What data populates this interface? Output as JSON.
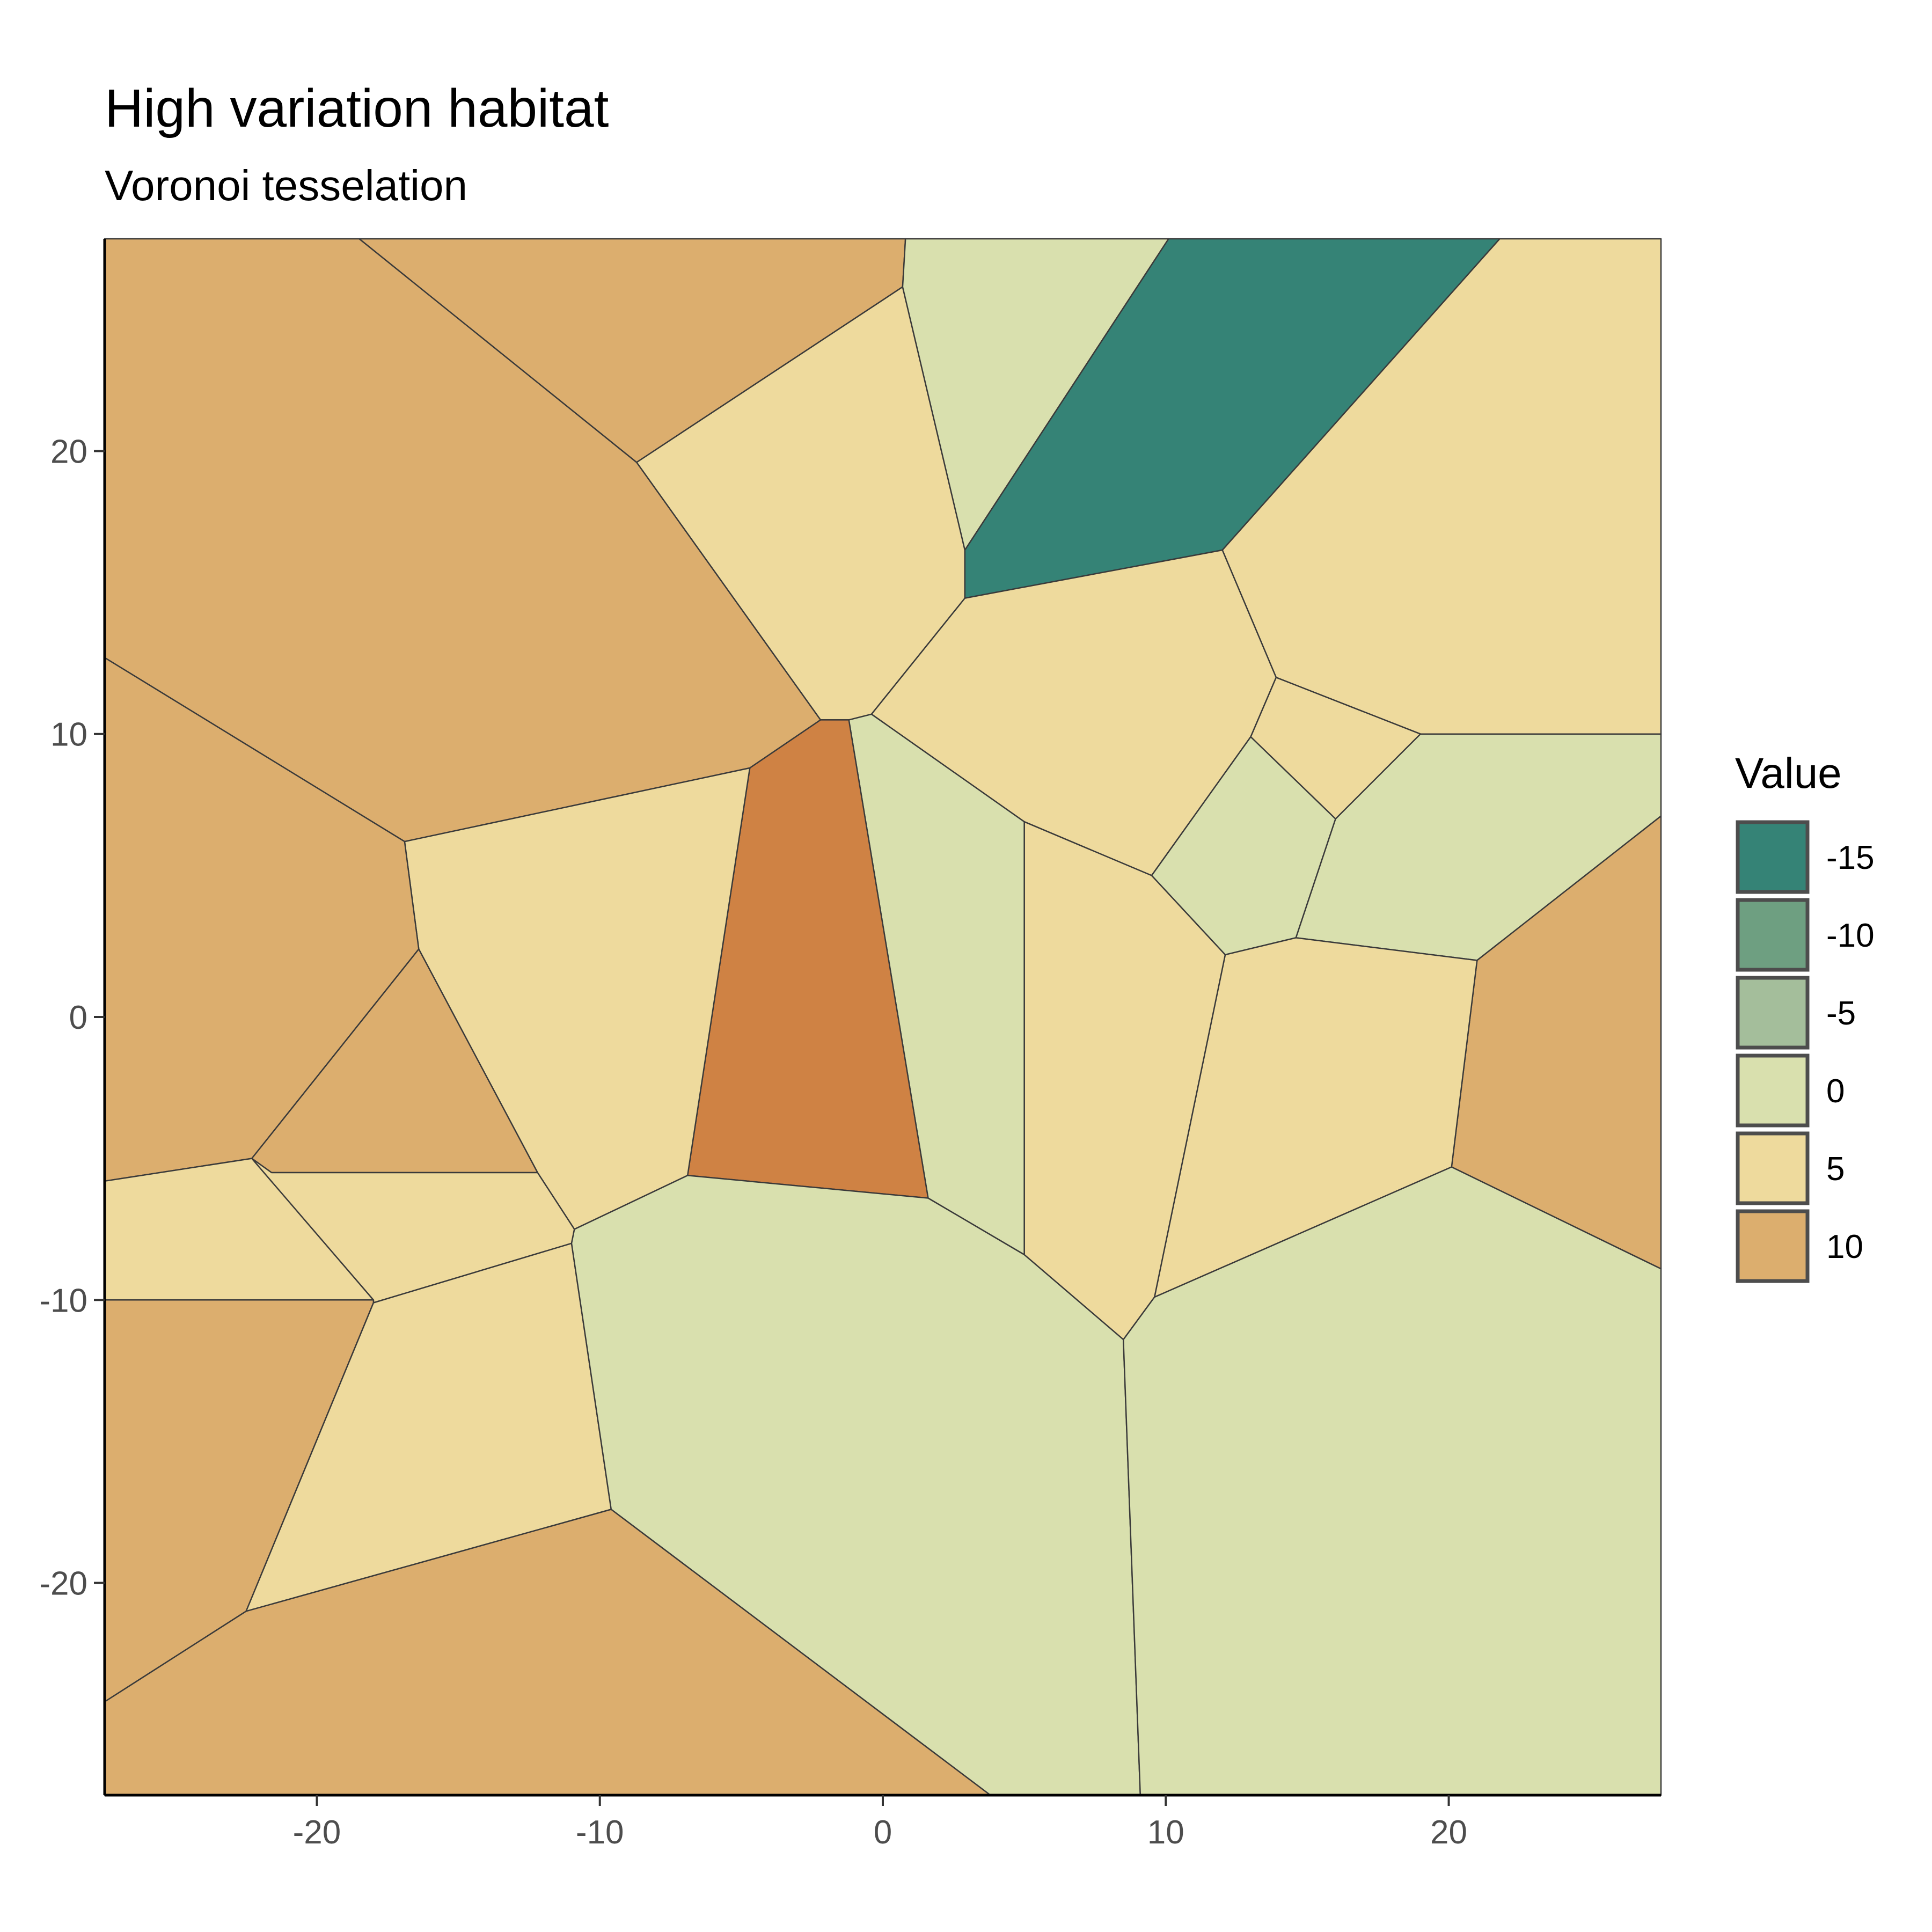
{
  "chart_data": {
    "type": "voronoi",
    "title": "High variation habitat",
    "subtitle": "Voronoi tesselation",
    "xlim": [
      -27.5,
      27.5
    ],
    "ylim": [
      -27.5,
      27.5
    ],
    "x_ticks": [
      -20,
      -10,
      0,
      10,
      20
    ],
    "y_ticks": [
      -20,
      -10,
      0,
      10,
      20
    ],
    "legend": {
      "title": "Value",
      "position": "right",
      "entries": [
        {
          "label": "-15",
          "value": -15,
          "color": "#358376"
        },
        {
          "label": "-10",
          "value": -10,
          "color": "#6E9F81"
        },
        {
          "label": "-5",
          "value": -5,
          "color": "#A4BE9B"
        },
        {
          "label": "0",
          "value": 0,
          "color": "#D9E0AE"
        },
        {
          "label": "5",
          "value": 5,
          "color": "#EEDA9D"
        },
        {
          "label": "10",
          "value": 10,
          "color": "#DCAE6E"
        }
      ]
    },
    "extra_fill_colors": {
      "12": "#CF8244"
    },
    "cells": [
      {
        "value": 10,
        "polygon": [
          [
            -27.5,
            27.5
          ],
          [
            -18.5,
            27.5
          ],
          [
            -8.7,
            19.6
          ],
          [
            -2.2,
            10.5
          ],
          [
            -4.7,
            8.8
          ],
          [
            -16.9,
            6.2
          ],
          [
            -27.5,
            12.7
          ]
        ]
      },
      {
        "value": 10,
        "polygon": [
          [
            -18.5,
            27.5
          ],
          [
            0.8,
            27.5
          ],
          [
            0.7,
            25.8
          ],
          [
            -8.7,
            19.6
          ]
        ]
      },
      {
        "value": 5,
        "polygon": [
          [
            0.7,
            25.8
          ],
          [
            -8.7,
            19.6
          ],
          [
            -2.2,
            10.5
          ],
          [
            -1.2,
            10.5
          ],
          [
            -0.4,
            10.7
          ],
          [
            2.9,
            14.8
          ],
          [
            2.9,
            16.5
          ]
        ]
      },
      {
        "value": 0,
        "polygon": [
          [
            0.8,
            27.5
          ],
          [
            10.1,
            27.5
          ],
          [
            2.9,
            16.5
          ],
          [
            0.7,
            25.8
          ]
        ]
      },
      {
        "value": -15,
        "polygon": [
          [
            10.1,
            27.5
          ],
          [
            21.8,
            27.5
          ],
          [
            12.0,
            16.5
          ],
          [
            2.9,
            14.8
          ],
          [
            2.9,
            16.5
          ]
        ]
      },
      {
        "value": 5,
        "polygon": [
          [
            21.8,
            27.5
          ],
          [
            27.5,
            27.5
          ],
          [
            27.5,
            10.0
          ],
          [
            19.0,
            10.0
          ],
          [
            13.9,
            12.0
          ],
          [
            12.0,
            16.5
          ]
        ]
      },
      {
        "value": 5,
        "polygon": [
          [
            2.9,
            14.8
          ],
          [
            12.0,
            16.5
          ],
          [
            13.9,
            12.0
          ],
          [
            13.0,
            9.9
          ],
          [
            9.5,
            5.0
          ],
          [
            5.0,
            6.9
          ],
          [
            -0.4,
            10.7
          ]
        ]
      },
      {
        "value": 5,
        "polygon": [
          [
            13.9,
            12.0
          ],
          [
            19.0,
            10.0
          ],
          [
            16.0,
            7.0
          ],
          [
            13.0,
            9.9
          ]
        ]
      },
      {
        "value": 0,
        "polygon": [
          [
            13.0,
            9.9
          ],
          [
            16.0,
            7.0
          ],
          [
            14.6,
            2.8
          ],
          [
            12.1,
            2.2
          ],
          [
            9.5,
            5.0
          ]
        ]
      },
      {
        "value": 0,
        "polygon": [
          [
            19.0,
            10.0
          ],
          [
            27.5,
            10.0
          ],
          [
            27.5,
            7.1
          ],
          [
            21.0,
            2.0
          ],
          [
            14.6,
            2.8
          ],
          [
            16.0,
            7.0
          ]
        ]
      },
      {
        "value": 10,
        "polygon": [
          [
            27.5,
            7.1
          ],
          [
            27.5,
            -8.9
          ],
          [
            20.1,
            -5.3
          ],
          [
            21.0,
            2.0
          ]
        ]
      },
      {
        "value": 5,
        "polygon": [
          [
            14.6,
            2.8
          ],
          [
            21.0,
            2.0
          ],
          [
            20.1,
            -5.3
          ],
          [
            9.6,
            -9.9
          ],
          [
            12.1,
            2.2
          ]
        ]
      },
      {
        "value": 5,
        "polygon": [
          [
            5.0,
            6.9
          ],
          [
            9.5,
            5.0
          ],
          [
            12.1,
            2.2
          ],
          [
            9.6,
            -9.9
          ],
          [
            8.5,
            -11.4
          ],
          [
            5.0,
            -8.4
          ]
        ]
      },
      {
        "value": 0,
        "polygon": [
          [
            -1.2,
            10.5
          ],
          [
            -0.4,
            10.7
          ],
          [
            5.0,
            6.9
          ],
          [
            5.0,
            -8.4
          ],
          [
            1.6,
            -6.4
          ]
        ]
      },
      {
        "value": 12,
        "polygon": [
          [
            -2.2,
            10.5
          ],
          [
            -1.2,
            10.5
          ],
          [
            1.6,
            -6.4
          ],
          [
            -6.9,
            -5.6
          ],
          [
            -4.7,
            8.8
          ]
        ]
      },
      {
        "value": 5,
        "polygon": [
          [
            -16.9,
            6.2
          ],
          [
            -4.7,
            8.8
          ],
          [
            -6.9,
            -5.6
          ],
          [
            -10.9,
            -7.5
          ],
          [
            -12.2,
            -5.5
          ],
          [
            -16.4,
            2.4
          ]
        ]
      },
      {
        "value": 10,
        "polygon": [
          [
            -27.5,
            12.7
          ],
          [
            -16.9,
            6.2
          ],
          [
            -16.4,
            2.4
          ],
          [
            -22.3,
            -5.0
          ],
          [
            -27.5,
            -5.8
          ]
        ]
      },
      {
        "value": 10,
        "polygon": [
          [
            -16.4,
            2.4
          ],
          [
            -12.2,
            -5.5
          ],
          [
            -21.6,
            -5.5
          ],
          [
            -22.3,
            -5.0
          ]
        ]
      },
      {
        "value": 5,
        "polygon": [
          [
            -27.5,
            -5.8
          ],
          [
            -22.3,
            -5.0
          ],
          [
            -18.0,
            -10.0
          ],
          [
            -27.5,
            -10.0
          ]
        ]
      },
      {
        "value": 5,
        "polygon": [
          [
            -22.3,
            -5.0
          ],
          [
            -21.6,
            -5.5
          ],
          [
            -12.2,
            -5.5
          ],
          [
            -10.9,
            -7.5
          ],
          [
            -11.0,
            -8.0
          ],
          [
            -18.0,
            -10.1
          ],
          [
            -18.0,
            -10.0
          ]
        ]
      },
      {
        "value": 10,
        "polygon": [
          [
            -27.5,
            -10.0
          ],
          [
            -18.0,
            -10.0
          ],
          [
            -18.0,
            -10.1
          ],
          [
            -22.5,
            -21.0
          ],
          [
            -27.5,
            -24.2
          ]
        ]
      },
      {
        "value": 5,
        "polygon": [
          [
            -18.0,
            -10.1
          ],
          [
            -11.0,
            -8.0
          ],
          [
            -9.6,
            -17.4
          ],
          [
            -22.5,
            -21.0
          ]
        ]
      },
      {
        "value": 0,
        "polygon": [
          [
            -10.9,
            -7.5
          ],
          [
            -6.9,
            -5.6
          ],
          [
            1.6,
            -6.4
          ],
          [
            5.0,
            -8.4
          ],
          [
            8.5,
            -11.4
          ],
          [
            9.1,
            -27.5
          ],
          [
            3.8,
            -27.5
          ],
          [
            -9.6,
            -17.4
          ],
          [
            -11.0,
            -8.0
          ]
        ]
      },
      {
        "value": 10,
        "polygon": [
          [
            -27.5,
            -24.2
          ],
          [
            -22.5,
            -21.0
          ],
          [
            -9.6,
            -17.4
          ],
          [
            3.8,
            -27.5
          ],
          [
            -27.5,
            -27.5
          ]
        ]
      },
      {
        "value": 0,
        "polygon": [
          [
            8.5,
            -11.4
          ],
          [
            9.6,
            -9.9
          ],
          [
            20.1,
            -5.3
          ],
          [
            27.5,
            -8.9
          ],
          [
            27.5,
            -27.5
          ],
          [
            9.1,
            -27.5
          ]
        ]
      }
    ]
  }
}
